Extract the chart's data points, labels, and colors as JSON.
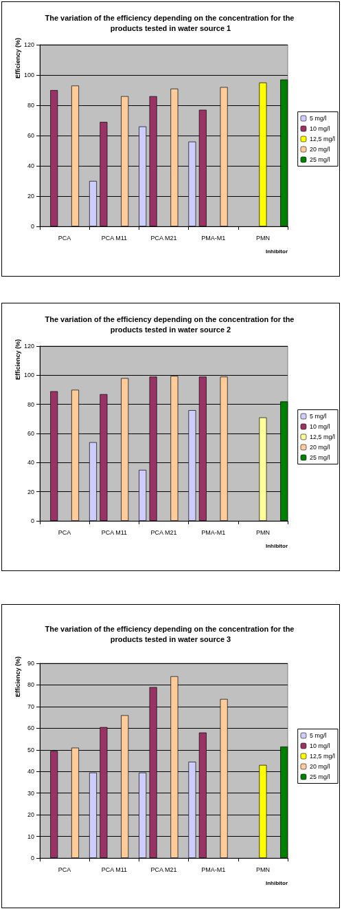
{
  "chart_data": [
    {
      "type": "bar",
      "title": "The variation of the efficiency depending on the concentration for the products tested in water source 1",
      "xlabel": "Inhibitor",
      "ylabel": "Efficiency (%)",
      "categories": [
        "PCA",
        "PCA M11",
        "PCA M21",
        "PMA-M1",
        "PMN"
      ],
      "ylim": [
        0,
        120
      ],
      "yticks": [
        0,
        20,
        40,
        60,
        80,
        100,
        120
      ],
      "grid": "y",
      "legend": "right",
      "series": [
        {
          "name": "5 mg/l",
          "color": "#ccccff",
          "values": [
            null,
            30,
            66,
            56,
            null
          ]
        },
        {
          "name": "10 mg/l",
          "color": "#993366",
          "values": [
            90,
            69,
            86,
            77,
            null
          ]
        },
        {
          "name": "12,5 mg/l",
          "color": "#ffff00",
          "values": [
            null,
            null,
            null,
            null,
            95
          ]
        },
        {
          "name": "20 mg/l",
          "color": "#ffcc99",
          "values": [
            93,
            86,
            91,
            92,
            null
          ]
        },
        {
          "name": "25 mg/l",
          "color": "#008000",
          "values": [
            null,
            null,
            null,
            null,
            97
          ]
        }
      ]
    },
    {
      "type": "bar",
      "title": "The variation of the efficiency depending on the concentration for the products tested in water source 2",
      "xlabel": "Inhibitor",
      "ylabel": "Efficiency (%)",
      "categories": [
        "PCA",
        "PCA M11",
        "PCA M21",
        "PMA-M1",
        "PMN"
      ],
      "ylim": [
        0,
        120
      ],
      "yticks": [
        0,
        20,
        40,
        60,
        80,
        100,
        120
      ],
      "grid": "y",
      "legend": "right",
      "series": [
        {
          "name": "5 mg/l",
          "color": "#ccccff",
          "values": [
            null,
            54,
            35,
            76,
            null
          ]
        },
        {
          "name": "10 mg/l",
          "color": "#993366",
          "values": [
            89,
            87,
            99,
            99,
            null
          ]
        },
        {
          "name": "12,5 mg/l",
          "color": "#ffff99",
          "values": [
            null,
            null,
            null,
            null,
            71
          ]
        },
        {
          "name": "20 mg/l",
          "color": "#ffcc99",
          "values": [
            90,
            98,
            99.5,
            99,
            null
          ]
        },
        {
          "name": "25 mg/l",
          "color": "#008000",
          "values": [
            null,
            null,
            null,
            null,
            82
          ]
        }
      ]
    },
    {
      "type": "bar",
      "title": "The variation of the efficiency depending on the concentration for the products tested in water source 3",
      "xlabel": "Inhibitor",
      "ylabel": "Efficiency (%)",
      "categories": [
        "PCA",
        "PCA M11",
        "PCA M21",
        "PMA-M1",
        "PMN"
      ],
      "ylim": [
        0,
        90
      ],
      "yticks": [
        0,
        10,
        20,
        30,
        40,
        50,
        60,
        70,
        80,
        90
      ],
      "grid": "y",
      "legend": "right",
      "series": [
        {
          "name": "5 mg/l",
          "color": "#ccccff",
          "values": [
            null,
            39.5,
            39.5,
            44.5,
            null
          ]
        },
        {
          "name": "10 mg/l",
          "color": "#993366",
          "values": [
            49.5,
            60.5,
            79,
            58,
            null
          ]
        },
        {
          "name": "12,5 mg/l",
          "color": "#ffff00",
          "values": [
            null,
            null,
            null,
            null,
            43
          ]
        },
        {
          "name": "20 mg/l",
          "color": "#ffcc99",
          "values": [
            51,
            66,
            84,
            73.5,
            null
          ]
        },
        {
          "name": "25 mg/l",
          "color": "#008000",
          "values": [
            null,
            null,
            null,
            null,
            51.5
          ]
        }
      ]
    }
  ]
}
